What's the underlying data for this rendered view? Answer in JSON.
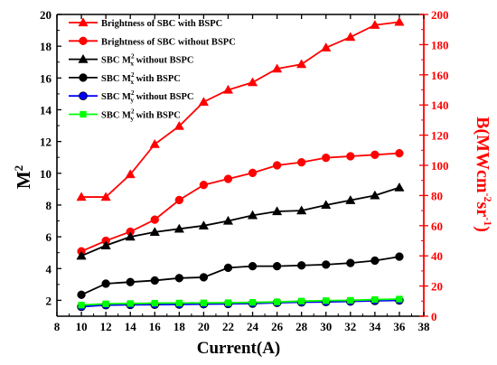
{
  "chart_data": {
    "type": "line",
    "x": [
      10,
      12,
      14,
      16,
      18,
      20,
      22,
      24,
      26,
      28,
      30,
      32,
      34,
      36
    ],
    "xlabel": "Current(A)",
    "xlim": [
      8,
      38
    ],
    "xticks": [
      "8",
      "10",
      "12",
      "14",
      "16",
      "18",
      "20",
      "22",
      "24",
      "26",
      "28",
      "30",
      "32",
      "34",
      "36",
      "38"
    ],
    "ylabel": "M",
    "ylabel_sup": "2",
    "ylim": [
      1,
      20
    ],
    "yticks": [
      "2",
      "4",
      "6",
      "8",
      "10",
      "12",
      "14",
      "16",
      "18",
      "20"
    ],
    "y2label": "B(MWcm",
    "y2label_sup1": "-2",
    "y2label_mid": "sr",
    "y2label_sup2": "-1",
    "y2label_end": ")",
    "y2lim": [
      0,
      200
    ],
    "y2ticks": [
      "0",
      "20",
      "40",
      "60",
      "80",
      "100",
      "120",
      "140",
      "160",
      "180",
      "200"
    ],
    "grid": false,
    "legend_position": "top-left",
    "series": [
      {
        "name": "Brightness of SBC with BSPC",
        "axis": "right",
        "color": "#ff0000",
        "marker": "triangle",
        "values": [
          79,
          79,
          94,
          114,
          126,
          142,
          150,
          155,
          164,
          167,
          178,
          185,
          193,
          195
        ]
      },
      {
        "name": "Brightness of SBC without BSPC",
        "axis": "right",
        "color": "#ff0000",
        "marker": "circle",
        "values": [
          43,
          50,
          56,
          64,
          77,
          87,
          91,
          95,
          100,
          102,
          105,
          106,
          107,
          108
        ]
      },
      {
        "name": "SBC M",
        "sub": "x",
        "sup": "2",
        "suffix": " without BSPC",
        "axis": "left",
        "color": "#000000",
        "marker": "triangle",
        "values": [
          4.8,
          5.45,
          6.0,
          6.3,
          6.5,
          6.7,
          7.0,
          7.35,
          7.6,
          7.65,
          8.0,
          8.3,
          8.6,
          9.1
        ]
      },
      {
        "name": "SBC M",
        "sub": "x",
        "sup": "2",
        "suffix": " with BSPC",
        "axis": "left",
        "color": "#000000",
        "marker": "circle",
        "values": [
          2.35,
          3.05,
          3.15,
          3.25,
          3.4,
          3.45,
          4.05,
          4.15,
          4.15,
          4.2,
          4.25,
          4.35,
          4.5,
          4.75
        ]
      },
      {
        "name": "SBC M",
        "sub": "y",
        "sup": "2",
        "suffix": " without BSPC",
        "axis": "left",
        "color": "#0000ff",
        "marker": "circle",
        "values": [
          1.6,
          1.7,
          1.72,
          1.73,
          1.74,
          1.76,
          1.78,
          1.8,
          1.85,
          1.88,
          1.9,
          1.93,
          1.97,
          2.0
        ]
      },
      {
        "name": "SBC M",
        "sub": "y",
        "sup": "2",
        "suffix": " with BSPC",
        "axis": "left",
        "color": "#00ff00",
        "marker": "square",
        "values": [
          1.7,
          1.78,
          1.8,
          1.82,
          1.83,
          1.84,
          1.85,
          1.87,
          1.9,
          1.95,
          1.98,
          2.0,
          2.05,
          2.08
        ]
      }
    ]
  }
}
